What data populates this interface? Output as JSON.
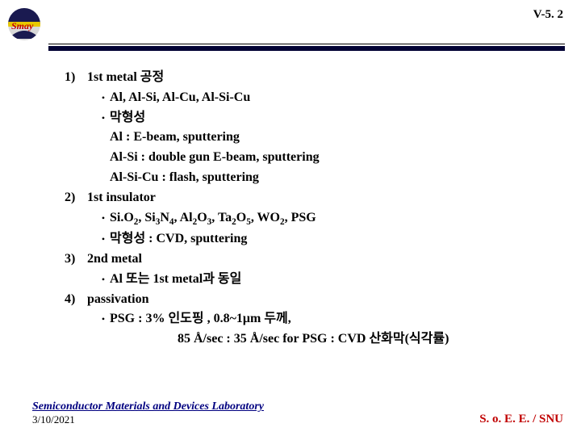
{
  "page_number": "V-5. 2",
  "logo": {
    "text": "Smay",
    "text_color": "#c20000",
    "fill1": "#0a0a40",
    "fill2": "#d9d9d9",
    "band_color": "#e8c800"
  },
  "sections": [
    {
      "num": "1)",
      "title": "1st metal 공정",
      "bullets": [
        {
          "text": "Al, Al-Si, Al-Cu, Al-Si-Cu"
        },
        {
          "text": "막형성"
        }
      ],
      "lines": [
        "Al : E-beam, sputtering",
        "Al-Si : double gun E-beam, sputtering",
        "Al-Si-Cu : flash, sputtering"
      ]
    },
    {
      "num": "2)",
      "title": "1st insulator",
      "bullets": [
        {
          "html": "Si.O<sub>2</sub>, Si<sub>3</sub>N<sub>4</sub>, Al<sub>2</sub>O<sub>3</sub>, Ta<sub>2</sub>O<sub>5</sub>, WO<sub>2</sub>, PSG"
        },
        {
          "text": "막형성 : CVD, sputtering"
        }
      ]
    },
    {
      "num": "3)",
      "title": "2nd metal",
      "bullets": [
        {
          "text": "Al 또는 1st metal과 동일"
        }
      ]
    },
    {
      "num": "4)",
      "title": "passivation",
      "bullets": [
        {
          "text": "PSG : 3% 인도핑 , 0.8~1μm 두께,"
        }
      ],
      "extra": "85 Å/sec : 35 Å/sec  for PSG : CVD 산화막(식각률)"
    }
  ],
  "footer": {
    "lab": "Semiconductor Materials and Devices Laboratory",
    "date": "3/10/2021",
    "right": "S. o. E. E. / SNU"
  }
}
